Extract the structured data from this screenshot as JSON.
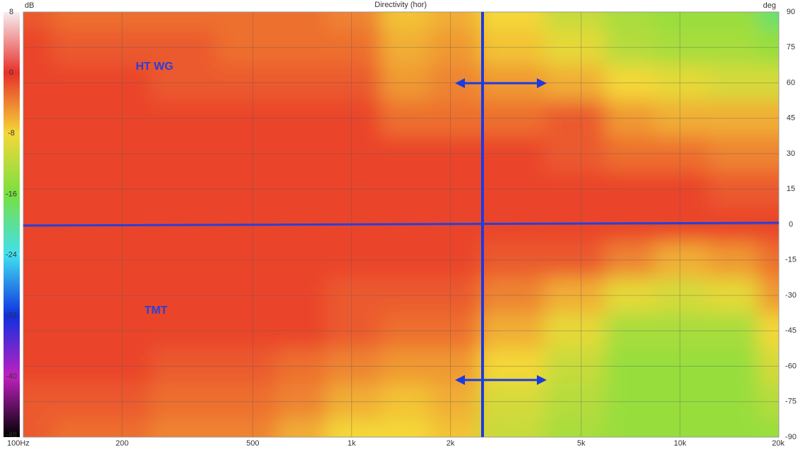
{
  "chart_data": {
    "type": "heatmap",
    "title": "Directivity (hor)",
    "colorbar_label": "dB",
    "y_label": "deg",
    "x": [
      100,
      150,
      200,
      300,
      500,
      700,
      1000,
      1500,
      2000,
      3000,
      5000,
      7000,
      10000,
      15000,
      20000
    ],
    "y": [
      90,
      75,
      60,
      45,
      30,
      15,
      0,
      -15,
      -30,
      -45,
      -60,
      -75,
      -90
    ],
    "z": [
      [
        -2,
        -3,
        -3,
        -3,
        -3,
        -3,
        -4,
        -7,
        -6,
        -8,
        -11,
        -13,
        -14,
        -14,
        -18
      ],
      [
        -1,
        -2,
        -2,
        -2,
        -3,
        -3,
        -3,
        -6,
        -5,
        -7,
        -9,
        -12,
        -13,
        -13,
        -14
      ],
      [
        -1,
        -1,
        -1,
        -2,
        -2,
        -2,
        -2,
        -5,
        -4,
        -5,
        -6,
        -8,
        -9,
        -10,
        -10
      ],
      [
        -1,
        -1,
        -1,
        -1,
        -1,
        -1,
        -1,
        -3,
        -3,
        -3,
        -2,
        -5,
        -6,
        -6,
        -6
      ],
      [
        -1,
        -1,
        -1,
        -1,
        -1,
        -1,
        -1,
        -1,
        -1,
        -1,
        -2,
        -3,
        -3,
        -4,
        -4
      ],
      [
        -1,
        -1,
        -1,
        -1,
        -1,
        -1,
        -1,
        -1,
        -1,
        -1,
        -1,
        -1,
        -1,
        -2,
        -2
      ],
      [
        -1,
        -1,
        -1,
        -1,
        -1,
        -1,
        -1,
        -1,
        -1,
        -1,
        -1,
        -1,
        -1,
        -1,
        -1
      ],
      [
        -1,
        -1,
        -1,
        -1,
        -1,
        -1,
        -1,
        -1,
        -1,
        -2,
        -2,
        -4,
        -6,
        -5,
        -3
      ],
      [
        -1,
        -1,
        -1,
        -1,
        -1,
        -1,
        -2,
        -2,
        -2,
        -4,
        -6,
        -9,
        -10,
        -9,
        -5
      ],
      [
        -1,
        -1,
        -1,
        -1,
        -1,
        -1,
        -2,
        -3,
        -3,
        -6,
        -9,
        -13,
        -13,
        -13,
        -8
      ],
      [
        -1,
        -1,
        -1,
        -2,
        -2,
        -3,
        -4,
        -5,
        -5,
        -8,
        -11,
        -14,
        -14,
        -14,
        -10
      ],
      [
        -2,
        -2,
        -2,
        -3,
        -3,
        -4,
        -6,
        -7,
        -6,
        -10,
        -12,
        -14,
        -14,
        -14,
        -12
      ],
      [
        -2,
        -3,
        -3,
        -4,
        -4,
        -6,
        -8,
        -8,
        -7,
        -11,
        -13,
        -14,
        -14,
        -14,
        -14
      ]
    ],
    "xlim": [
      100,
      20000
    ],
    "log_x": true,
    "xticks": [
      {
        "value": 100,
        "label": "100Hz"
      },
      200,
      500,
      {
        "value": 1000,
        "label": "1k"
      },
      {
        "value": 2000,
        "label": "2k"
      },
      {
        "value": 5000,
        "label": "5k"
      },
      {
        "value": 10000,
        "label": "10k"
      },
      {
        "value": 20000,
        "label": "20k"
      }
    ],
    "ylim": [
      -90,
      90
    ],
    "yticks": [
      90,
      75,
      60,
      45,
      30,
      15,
      0,
      -15,
      -30,
      -45,
      -60,
      -75,
      -90
    ],
    "colorbar": {
      "lim": [
        -48,
        8
      ],
      "ticks": [
        8,
        0,
        -8,
        -16,
        -24,
        -32,
        -40,
        -48
      ],
      "colors": [
        "#f6eef0",
        "#e8302a",
        "#f4d838",
        "#78e040",
        "#40e0f0",
        "#1030e0",
        "#c020c0",
        "#000000"
      ]
    },
    "grid": true,
    "annotations": [
      "HT WG",
      "TMT"
    ]
  }
}
